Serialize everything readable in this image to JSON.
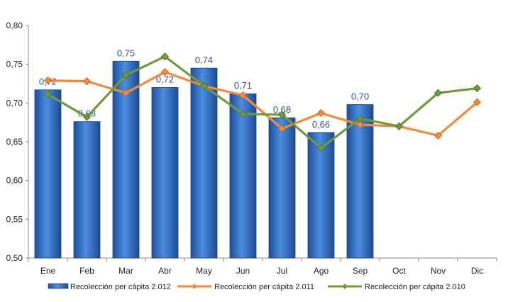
{
  "chart_data": {
    "type": "bar",
    "categories": [
      "Ene",
      "Feb",
      "Mar",
      "Abr",
      "May",
      "Jun",
      "Jul",
      "Ago",
      "Sep",
      "Oct",
      "Nov",
      "Dic"
    ],
    "ylim": [
      0.5,
      0.8
    ],
    "yticks": [
      0.5,
      0.55,
      0.6,
      0.65,
      0.7,
      0.75,
      0.8
    ],
    "ytick_labels": [
      "0,50",
      "0,55",
      "0,60",
      "0,65",
      "0,70",
      "0,75",
      "0,80"
    ],
    "grid": false,
    "legend": "bottom",
    "series": [
      {
        "name": "Recolección per cápita 2.012",
        "type": "bar",
        "color": "#2e6bc6",
        "values": [
          0.717,
          0.676,
          0.754,
          0.72,
          0.745,
          0.712,
          0.681,
          0.662,
          0.698,
          null,
          null,
          null
        ],
        "labels": [
          "0,72",
          "0,68",
          "0,75",
          "0,72",
          "0,74",
          "0,71",
          "0,68",
          "0,66",
          "0,70",
          null,
          null,
          null
        ]
      },
      {
        "name": "Recolección per cápita 2.011",
        "type": "line",
        "color": "#f58a36",
        "values": [
          0.729,
          0.728,
          0.713,
          0.74,
          0.722,
          0.71,
          0.667,
          0.687,
          0.672,
          0.67,
          0.658,
          0.701
        ]
      },
      {
        "name": "Recolección per cápita 2.010",
        "type": "line",
        "color": "#6e9b3a",
        "values": [
          0.711,
          0.682,
          0.736,
          0.76,
          0.722,
          0.686,
          0.685,
          0.642,
          0.68,
          0.67,
          0.713,
          0.719
        ]
      }
    ]
  }
}
